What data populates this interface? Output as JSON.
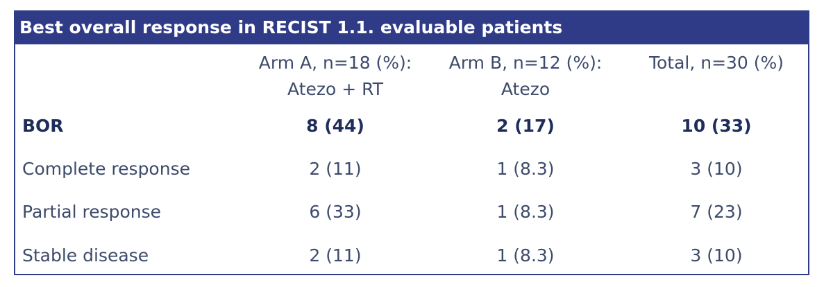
{
  "header": {
    "title": "Best overall response in RECIST 1.1. evaluable patients"
  },
  "table": {
    "columns": [
      [
        "Arm A, n=18 (%):",
        "Atezo + RT"
      ],
      [
        "Arm B, n=12 (%):",
        "Atezo"
      ],
      [
        "Total, n=30 (%)"
      ]
    ],
    "rows": [
      [
        "BOR",
        "8 (44)",
        "2 (17)",
        "10 (33)"
      ],
      [
        "Complete response",
        "2 (11)",
        "1 (8.3)",
        "3 (10)"
      ],
      [
        "Partial response",
        "6 (33)",
        "1 (8.3)",
        "7 (23)"
      ],
      [
        "Stable disease",
        "2 (11)",
        "1 (8.3)",
        "3 (10)"
      ]
    ]
  }
}
